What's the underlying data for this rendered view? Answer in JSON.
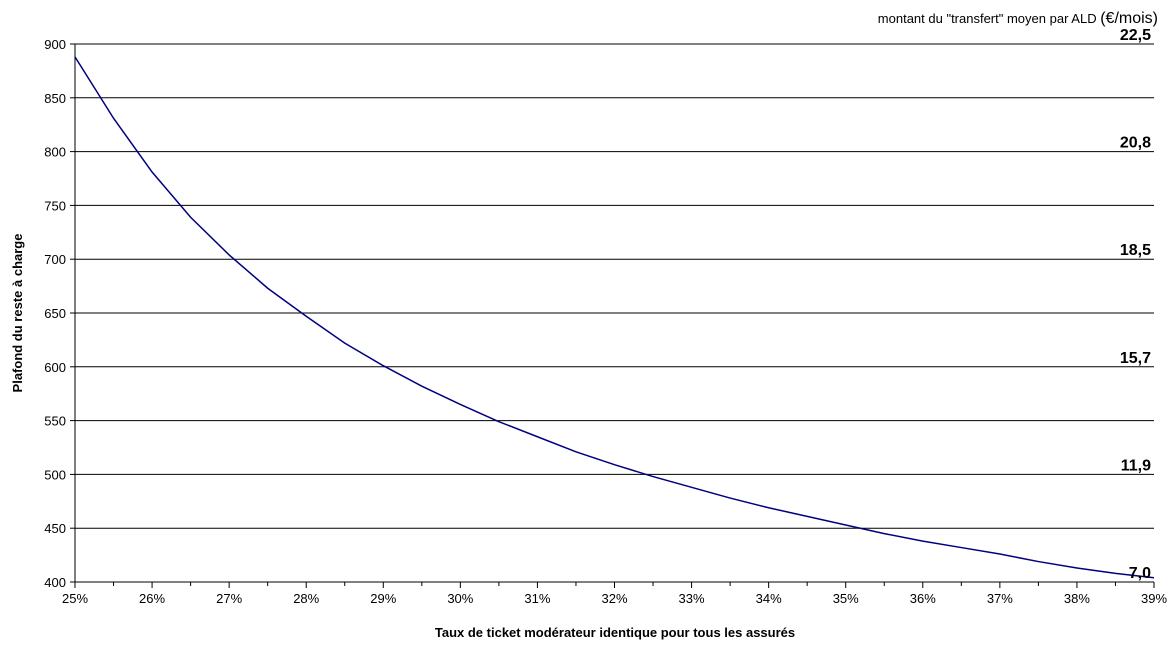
{
  "chart_data": {
    "type": "line",
    "xlabel": "Taux de ticket modérateur identique pour tous les assurés",
    "ylabel": "Plafond du reste à charge",
    "secondary_title": "montant du \"transfert\" moyen par ALD",
    "secondary_unit": "(€/mois)",
    "x_tick_labels": [
      "25%",
      "26%",
      "27%",
      "28%",
      "29%",
      "30%",
      "31%",
      "32%",
      "33%",
      "34%",
      "35%",
      "36%",
      "37%",
      "38%",
      "39%"
    ],
    "y_tick_labels": [
      "400",
      "450",
      "500",
      "550",
      "600",
      "650",
      "700",
      "750",
      "800",
      "850",
      "900"
    ],
    "xlim": [
      25,
      39
    ],
    "ylim": [
      400,
      900
    ],
    "grid": "horizontal",
    "series": [
      {
        "color": "#000080",
        "x": [
          25,
          25.5,
          26,
          26.5,
          27,
          27.5,
          28,
          28.5,
          29,
          29.5,
          30,
          30.5,
          31,
          31.5,
          32,
          32.5,
          33,
          33.5,
          34,
          34.5,
          35,
          35.5,
          36,
          36.5,
          37,
          37.5,
          38,
          38.5,
          39
        ],
        "y": [
          888,
          831,
          781,
          739,
          704,
          673,
          647,
          622,
          601,
          582,
          565,
          549,
          535,
          521,
          509,
          498,
          488,
          478,
          469,
          461,
          453,
          445,
          438,
          432,
          426,
          419,
          413,
          408,
          404
        ]
      }
    ],
    "right_labels": [
      {
        "y": 900,
        "text": "22,5"
      },
      {
        "y": 800,
        "text": "20,8"
      },
      {
        "y": 700,
        "text": "18,5"
      },
      {
        "y": 600,
        "text": "15,7"
      },
      {
        "y": 500,
        "text": "11,9"
      },
      {
        "y": 400,
        "text": "7,0"
      }
    ]
  }
}
